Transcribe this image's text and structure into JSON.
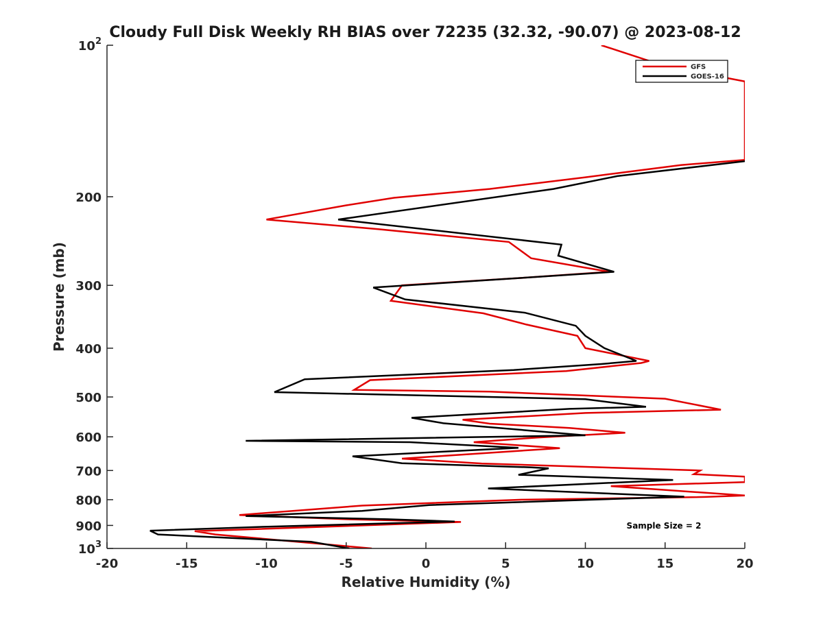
{
  "chart_data": {
    "type": "line",
    "title": "Cloudy Full Disk Weekly RH BIAS over 72235 (32.32, -90.07) @ 2023-08-12",
    "xlabel": "Relative Humidity (%)",
    "ylabel": "Pressure (mb)",
    "xlim": [
      -20,
      20
    ],
    "ylim": [
      100,
      1000
    ],
    "yscale": "log",
    "y_reversed": true,
    "legend_position": "top-right",
    "grid": false,
    "x_ticks": [
      -20,
      -15,
      -10,
      -5,
      0,
      5,
      10,
      15,
      20
    ],
    "x_tick_labels": [
      "-20",
      "-15",
      "-10",
      "-5",
      "0",
      "5",
      "10",
      "15",
      "20"
    ],
    "y_ticks": [
      100,
      200,
      300,
      400,
      500,
      600,
      700,
      800,
      900,
      1000
    ],
    "y_tick_labels": [
      {
        "base": "10",
        "exp": "2"
      },
      {
        "base": "200",
        "exp": ""
      },
      {
        "base": "300",
        "exp": ""
      },
      {
        "base": "400",
        "exp": ""
      },
      {
        "base": "500",
        "exp": ""
      },
      {
        "base": "600",
        "exp": ""
      },
      {
        "base": "700",
        "exp": ""
      },
      {
        "base": "800",
        "exp": ""
      },
      {
        "base": "900",
        "exp": ""
      },
      {
        "base": "10",
        "exp": "3"
      }
    ],
    "annotation": "Sample Size = 2",
    "series": [
      {
        "name": "GFS",
        "color": "#e00000",
        "points": [
          [
            11,
            100
          ],
          [
            15,
            110
          ],
          [
            20,
            118
          ],
          [
            20,
            120
          ],
          [
            20,
            169
          ],
          [
            16,
            173
          ],
          [
            10,
            183
          ],
          [
            4,
            193
          ],
          [
            -2,
            201
          ],
          [
            -5,
            208
          ],
          [
            -10,
            222
          ],
          [
            -3,
            232
          ],
          [
            5.2,
            246
          ],
          [
            6.6,
            265
          ],
          [
            11.5,
            282
          ],
          [
            6,
            290
          ],
          [
            -1.5,
            300
          ],
          [
            -2.2,
            322
          ],
          [
            3.6,
            341
          ],
          [
            6.3,
            359
          ],
          [
            9.5,
            378
          ],
          [
            10,
            400
          ],
          [
            14,
            424
          ],
          [
            13.5,
            428
          ],
          [
            8.8,
            444
          ],
          [
            -3.5,
            463
          ],
          [
            -4.5,
            484
          ],
          [
            4,
            488
          ],
          [
            15,
            504
          ],
          [
            18.5,
            530
          ],
          [
            10,
            538
          ],
          [
            2.3,
            555
          ],
          [
            4,
            565
          ],
          [
            9,
            576
          ],
          [
            12.5,
            589
          ],
          [
            7,
            602
          ],
          [
            3,
            615
          ],
          [
            8.4,
            632
          ],
          [
            -1.5,
            663
          ],
          [
            3.5,
            678
          ],
          [
            17.2,
            700
          ],
          [
            16.8,
            712
          ],
          [
            20,
            720
          ],
          [
            20,
            738
          ],
          [
            11.6,
            752
          ],
          [
            20,
            785
          ],
          [
            17.5,
            790
          ],
          [
            6,
            800
          ],
          [
            -4,
            822
          ],
          [
            -11.7,
            858
          ],
          [
            -5,
            875
          ],
          [
            2.2,
            886
          ],
          [
            -7,
            907
          ],
          [
            -14.5,
            924
          ],
          [
            -13.2,
            938
          ],
          [
            -3.4,
            1000
          ]
        ]
      },
      {
        "name": "GOES-16",
        "color": "#000000",
        "points": [
          [
            20,
            170
          ],
          [
            12,
            182
          ],
          [
            8,
            193
          ],
          [
            -5.5,
            222
          ],
          [
            8.5,
            249
          ],
          [
            8.3,
            262
          ],
          [
            11.8,
            282
          ],
          [
            6,
            290
          ],
          [
            -3.3,
            303
          ],
          [
            -1.3,
            320
          ],
          [
            6.2,
            340
          ],
          [
            9.4,
            361
          ],
          [
            10,
            378
          ],
          [
            11.2,
            400
          ],
          [
            13.2,
            424
          ],
          [
            11,
            430
          ],
          [
            5.5,
            442
          ],
          [
            -7.6,
            461
          ],
          [
            -9.5,
            489
          ],
          [
            10,
            505
          ],
          [
            13.8,
            523
          ],
          [
            9,
            528
          ],
          [
            -0.9,
            550
          ],
          [
            1.1,
            564
          ],
          [
            10,
            596
          ],
          [
            -11.3,
            611
          ],
          [
            -1,
            615
          ],
          [
            5.8,
            631
          ],
          [
            -4.6,
            656
          ],
          [
            -1.5,
            677
          ],
          [
            6.6,
            690
          ],
          [
            7.7,
            693
          ],
          [
            5.8,
            714
          ],
          [
            15.5,
            731
          ],
          [
            3.9,
            760
          ],
          [
            16.2,
            789
          ],
          [
            0.2,
            820
          ],
          [
            -4,
            842
          ],
          [
            -11.3,
            862
          ],
          [
            -2.4,
            875
          ],
          [
            1.8,
            884
          ],
          [
            -9.9,
            905
          ],
          [
            -17.3,
            922
          ],
          [
            -16.8,
            938
          ],
          [
            -7.2,
            970
          ],
          [
            -4.8,
            1000
          ]
        ]
      }
    ]
  }
}
